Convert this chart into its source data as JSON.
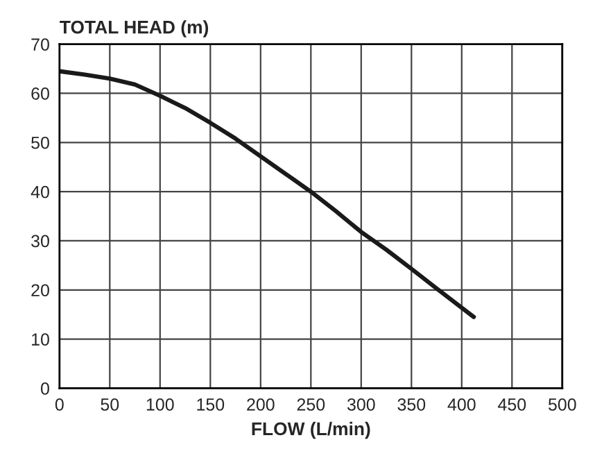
{
  "chart_data": {
    "type": "line",
    "ylabel": "TOTAL HEAD (m)",
    "xlabel": "FLOW (L/min)",
    "series": [
      {
        "color": "#1a1a1a",
        "x": [
          0,
          25,
          50,
          75,
          100,
          125,
          150,
          175,
          200,
          225,
          250,
          275,
          300,
          325,
          350,
          375,
          412
        ],
        "values": [
          64.5,
          63.8,
          63,
          61.8,
          59.5,
          57,
          54,
          50.8,
          47.2,
          43.6,
          40,
          36,
          31.8,
          28.2,
          24.3,
          20.3,
          14.5
        ]
      }
    ],
    "xlim": [
      0,
      500
    ],
    "xticks": [
      0,
      50,
      100,
      150,
      200,
      250,
      300,
      350,
      400,
      450,
      500
    ],
    "ylim": [
      0,
      70
    ],
    "yticks": [
      0,
      10,
      20,
      30,
      40,
      50,
      60,
      70
    ],
    "grid": true,
    "marker": "none",
    "line_style": "solid"
  }
}
